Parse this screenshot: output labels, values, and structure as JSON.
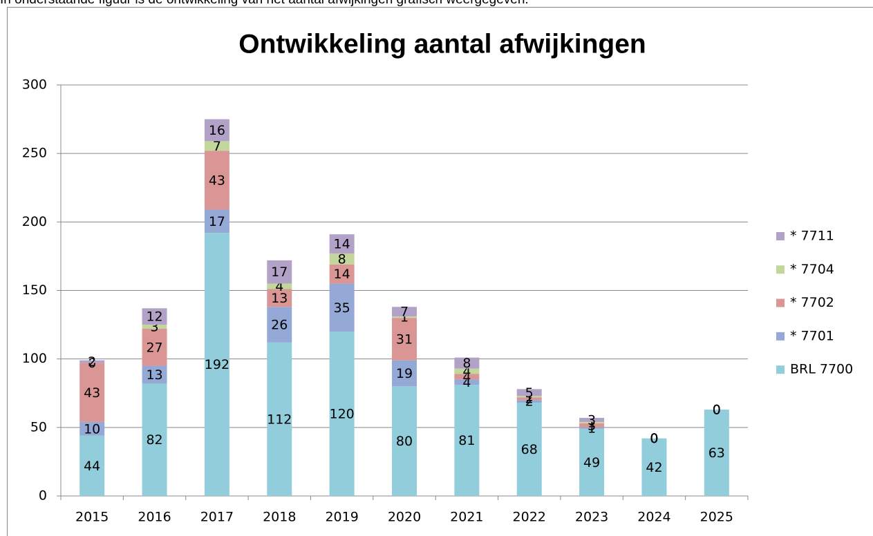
{
  "intro": "In onderstaande figuur is de ontwikkeling van het aantal afwijkingen grafisch weergegeven.",
  "chart_data": {
    "type": "stacked-bar",
    "title": "Ontwikkeling aantal afwijkingen",
    "categories": [
      "2015",
      "2016",
      "2017",
      "2018",
      "2019",
      "2020",
      "2021",
      "2022",
      "2023",
      "2024",
      "2025"
    ],
    "series": [
      {
        "name": "BRL 7700",
        "color": "#92cddc",
        "values": [
          44,
          82,
          192,
          112,
          120,
          80,
          81,
          68,
          49,
          42,
          63
        ]
      },
      {
        "name": "* 7701",
        "color": "#95a9d6",
        "values": [
          10,
          13,
          17,
          26,
          35,
          19,
          4,
          2,
          1,
          0,
          0
        ]
      },
      {
        "name": "* 7702",
        "color": "#d99694",
        "values": [
          43,
          27,
          43,
          13,
          14,
          31,
          4,
          2,
          3,
          0,
          0
        ]
      },
      {
        "name": "* 7704",
        "color": "#c3d69b",
        "values": [
          0,
          3,
          7,
          4,
          8,
          1,
          4,
          1,
          1,
          0,
          0
        ]
      },
      {
        "name": "* 7711",
        "color": "#b3a2c7",
        "values": [
          2,
          12,
          16,
          17,
          14,
          7,
          8,
          5,
          3,
          0,
          0
        ]
      }
    ],
    "ylim": [
      0,
      300
    ],
    "yticks": [
      0,
      50,
      100,
      150,
      200,
      250,
      300
    ],
    "grid": true,
    "legend": "right"
  }
}
